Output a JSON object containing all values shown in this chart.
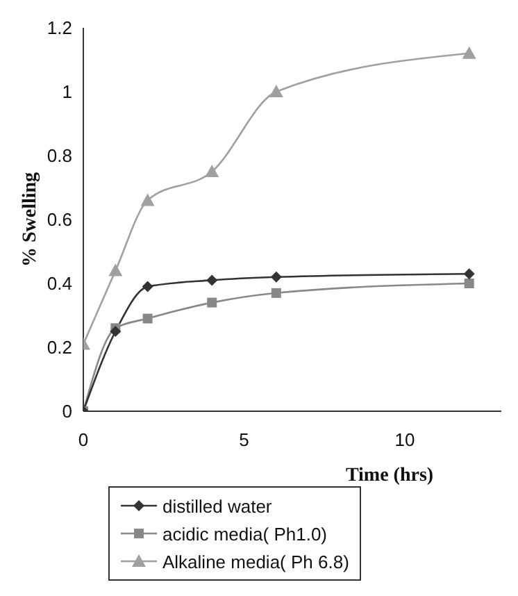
{
  "chart_data": {
    "type": "line",
    "xlabel": "Time (hrs)",
    "ylabel": "% Swelling",
    "x": [
      0,
      1,
      2,
      4,
      6,
      12
    ],
    "series": [
      {
        "name": "distilled water",
        "color": "#333333",
        "marker": "diamond",
        "values": [
          0,
          0.25,
          0.39,
          0.41,
          0.42,
          0.43
        ]
      },
      {
        "name": "acidic media( Ph1.0)",
        "color": "#888888",
        "marker": "square",
        "values": [
          0,
          0.26,
          0.29,
          0.34,
          0.37,
          0.4
        ]
      },
      {
        "name": "Alkaline media( Ph 6.8)",
        "color": "#a0a0a0",
        "marker": "triangle",
        "values": [
          0.21,
          0.44,
          0.66,
          0.75,
          1.0,
          1.12
        ]
      }
    ],
    "xlim": [
      0,
      13
    ],
    "xticks": [
      0,
      5,
      10
    ],
    "ylim": [
      0,
      1.2
    ],
    "yticks": [
      0,
      0.2,
      0.4,
      0.6,
      0.8,
      1,
      1.2
    ],
    "grid": false,
    "legend": "bottom"
  }
}
